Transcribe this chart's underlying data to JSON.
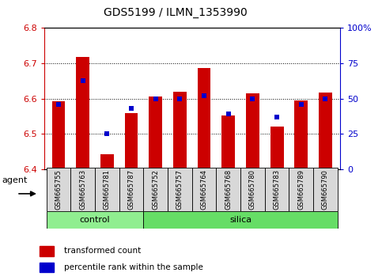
{
  "title": "GDS5199 / ILMN_1353990",
  "samples": [
    "GSM665755",
    "GSM665763",
    "GSM665781",
    "GSM665787",
    "GSM665752",
    "GSM665757",
    "GSM665764",
    "GSM665768",
    "GSM665780",
    "GSM665783",
    "GSM665789",
    "GSM665790"
  ],
  "groups": [
    "control",
    "control",
    "control",
    "control",
    "silica",
    "silica",
    "silica",
    "silica",
    "silica",
    "silica",
    "silica",
    "silica"
  ],
  "red_values": [
    6.592,
    6.718,
    6.443,
    6.56,
    6.606,
    6.62,
    6.687,
    6.553,
    6.615,
    6.522,
    6.595,
    6.618
  ],
  "blue_values_pct": [
    46,
    63,
    25,
    43,
    50,
    50,
    52,
    39,
    50,
    37,
    46,
    50
  ],
  "y_min": 6.4,
  "y_max": 6.8,
  "y_ticks": [
    6.4,
    6.5,
    6.6,
    6.7,
    6.8
  ],
  "right_y_ticks": [
    0,
    25,
    50,
    75,
    100
  ],
  "right_y_labels": [
    "0",
    "25",
    "50",
    "75",
    "100%"
  ],
  "bar_color": "#cc0000",
  "blue_color": "#0000cc",
  "control_color": "#90ee90",
  "silica_color": "#66dd66",
  "sample_box_color": "#d8d8d8",
  "plot_bg": "#ffffff",
  "legend_red_label": "transformed count",
  "legend_blue_label": "percentile rank within the sample",
  "agent_label": "agent",
  "group_control_label": "control",
  "group_silica_label": "silica",
  "n_control": 4,
  "n_silica": 8
}
